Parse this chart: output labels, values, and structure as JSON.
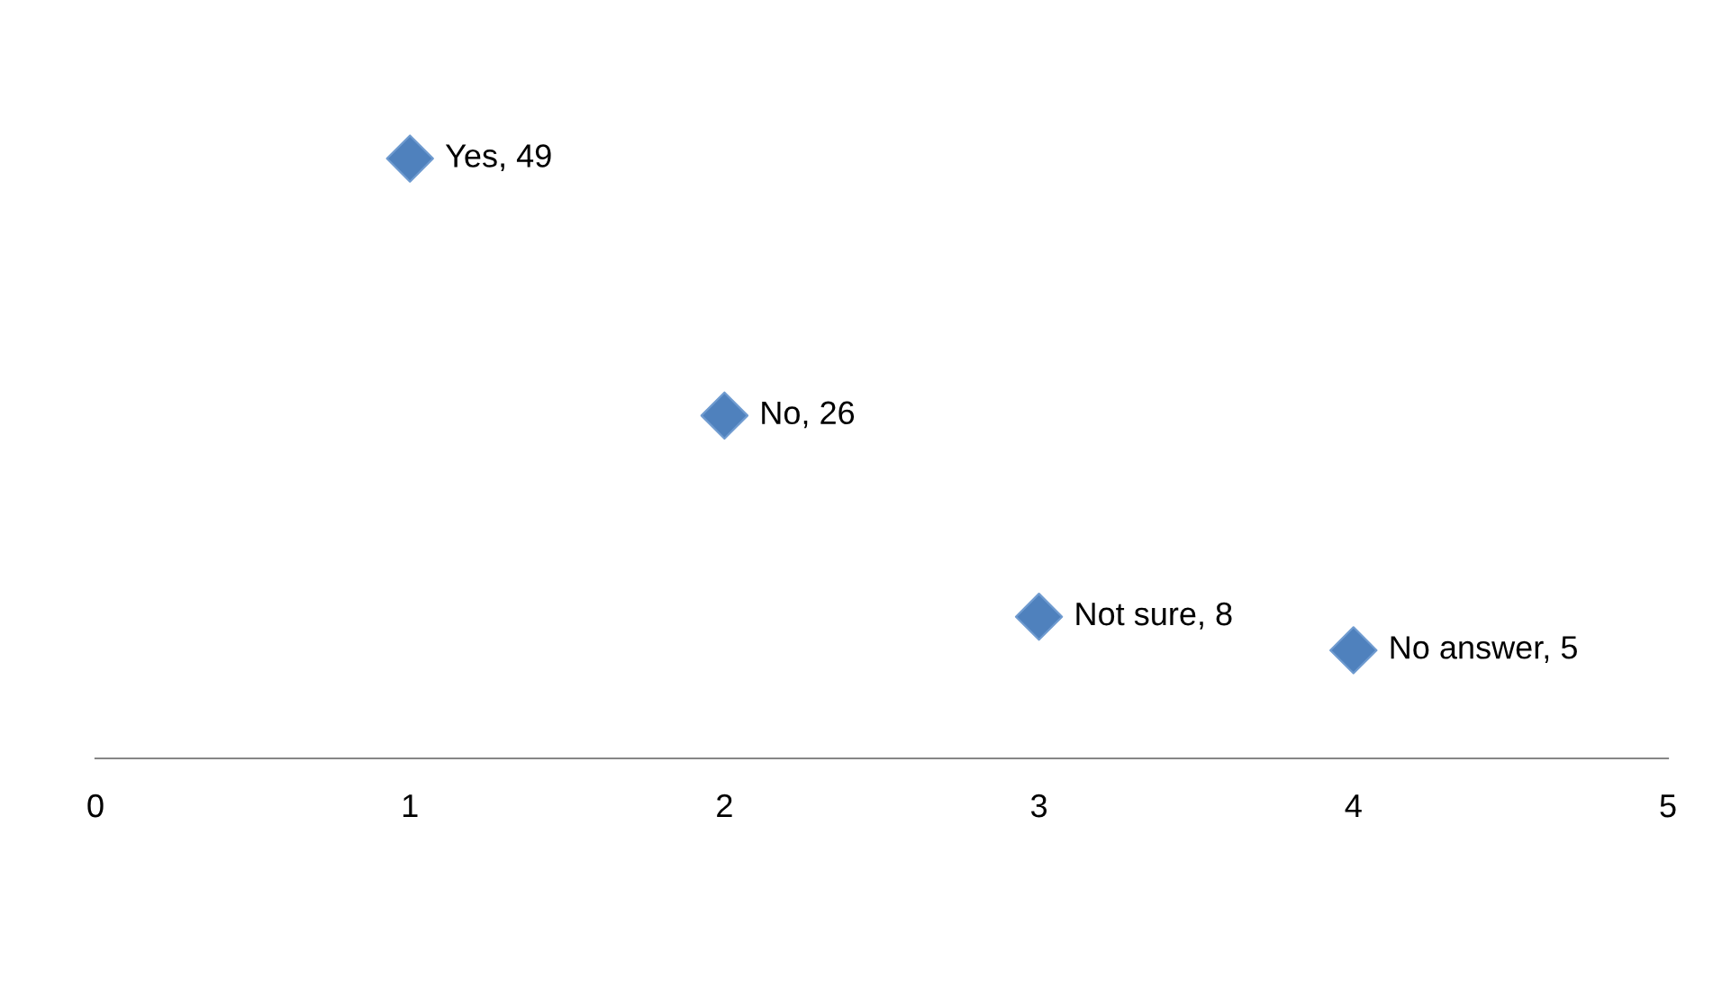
{
  "chart_data": {
    "type": "scatter",
    "x": [
      1,
      2,
      3,
      4
    ],
    "values": [
      49,
      26,
      8,
      5
    ],
    "value_labels": [
      "Yes, 49",
      "No, 26",
      "Not sure, 8",
      "No answer, 5"
    ],
    "color": "#4f81bd",
    "marker": "diamond",
    "xlim": [
      0,
      5
    ],
    "xticks": [
      0,
      1,
      2,
      3,
      4,
      5
    ],
    "tick_labels": "x",
    "grid": false,
    "legend": false
  }
}
